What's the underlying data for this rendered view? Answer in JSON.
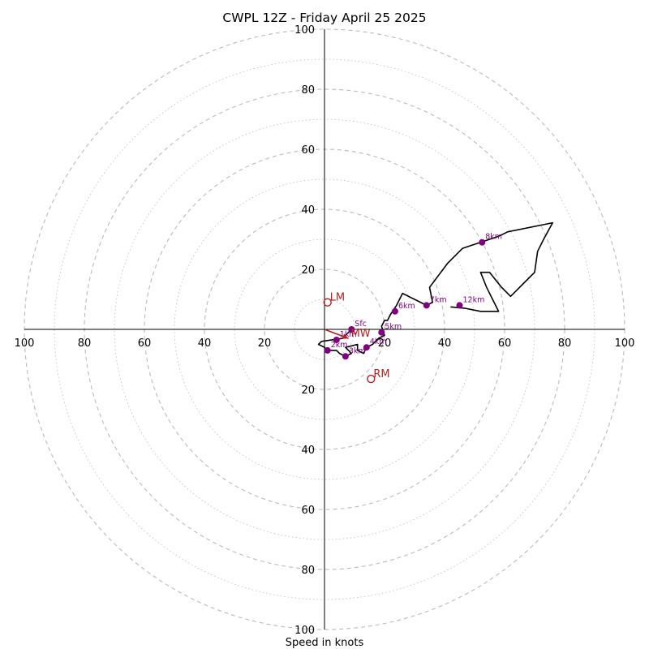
{
  "chart_data": {
    "type": "hodograph",
    "title": "CWPL 12Z - Friday April 25 2025",
    "xlabel": "Speed in knots",
    "x_range": [
      -100,
      100
    ],
    "y_range": [
      -100,
      100
    ],
    "ring_labels": [
      "20",
      "40",
      "60",
      "80",
      "100"
    ],
    "grid": {
      "major_rings": "dashed every 20",
      "minor_rings": "dotted every 10"
    },
    "colors": {
      "trace": "#000000",
      "levels": "#800080",
      "storm_motion": "#b22222",
      "grid": "#bbbbbb"
    },
    "trace": [
      [
        9,
        0
      ],
      [
        6,
        -3
      ],
      [
        -1,
        -4
      ],
      [
        -2,
        -5
      ],
      [
        0,
        -6
      ],
      [
        1,
        -7
      ],
      [
        4,
        -7
      ],
      [
        5,
        -8
      ],
      [
        7,
        -9
      ],
      [
        9,
        -8
      ],
      [
        7,
        -6
      ],
      [
        11,
        -5
      ],
      [
        11,
        -7
      ],
      [
        13,
        -8
      ],
      [
        14,
        -6
      ],
      [
        16,
        -5
      ],
      [
        18,
        -3
      ],
      [
        20,
        -2
      ],
      [
        19,
        1
      ],
      [
        20,
        3
      ],
      [
        21,
        3
      ],
      [
        22,
        5
      ],
      [
        24,
        8
      ],
      [
        26,
        12
      ],
      [
        30,
        10
      ],
      [
        34,
        8
      ],
      [
        36,
        9
      ],
      [
        35,
        14
      ],
      [
        41,
        22
      ],
      [
        46,
        27
      ],
      [
        49,
        28
      ],
      [
        52,
        29
      ],
      [
        58,
        31
      ],
      [
        61,
        32.5
      ],
      [
        76,
        35.5
      ],
      [
        73,
        30
      ],
      [
        71,
        26
      ],
      [
        70,
        19
      ],
      [
        66,
        15
      ],
      [
        62,
        11
      ],
      [
        59,
        14
      ],
      [
        55,
        19
      ],
      [
        52,
        19
      ],
      [
        54,
        14
      ],
      [
        56,
        10
      ],
      [
        58,
        6
      ],
      [
        52,
        6
      ],
      [
        47,
        7
      ],
      [
        42,
        7.5
      ]
    ],
    "levels": [
      {
        "label": "Sfc",
        "u": 9,
        "v": 0
      },
      {
        "label": "1km",
        "u": 4,
        "v": -3.5
      },
      {
        "label": "2km",
        "u": 1,
        "v": -7
      },
      {
        "label": "3km",
        "u": 7,
        "v": -9
      },
      {
        "label": "4km",
        "u": 14,
        "v": -6
      },
      {
        "label": "5km",
        "u": 19,
        "v": -1
      },
      {
        "label": "6km",
        "u": 23.5,
        "v": 6
      },
      {
        "label": "7km",
        "u": 34,
        "v": 8
      },
      {
        "label": "8km",
        "u": 52.5,
        "v": 29
      },
      {
        "label": "12km",
        "u": 45,
        "v": 8
      }
    ],
    "storm_motion": [
      {
        "label": "LM",
        "u": 1,
        "v": 9
      },
      {
        "label": "RM",
        "u": 15.5,
        "v": -16.5
      },
      {
        "label": "MW",
        "u": 8,
        "v": -3
      }
    ],
    "mean_wind_arrow": {
      "from": [
        0,
        0
      ],
      "to": [
        8,
        -3
      ]
    }
  }
}
